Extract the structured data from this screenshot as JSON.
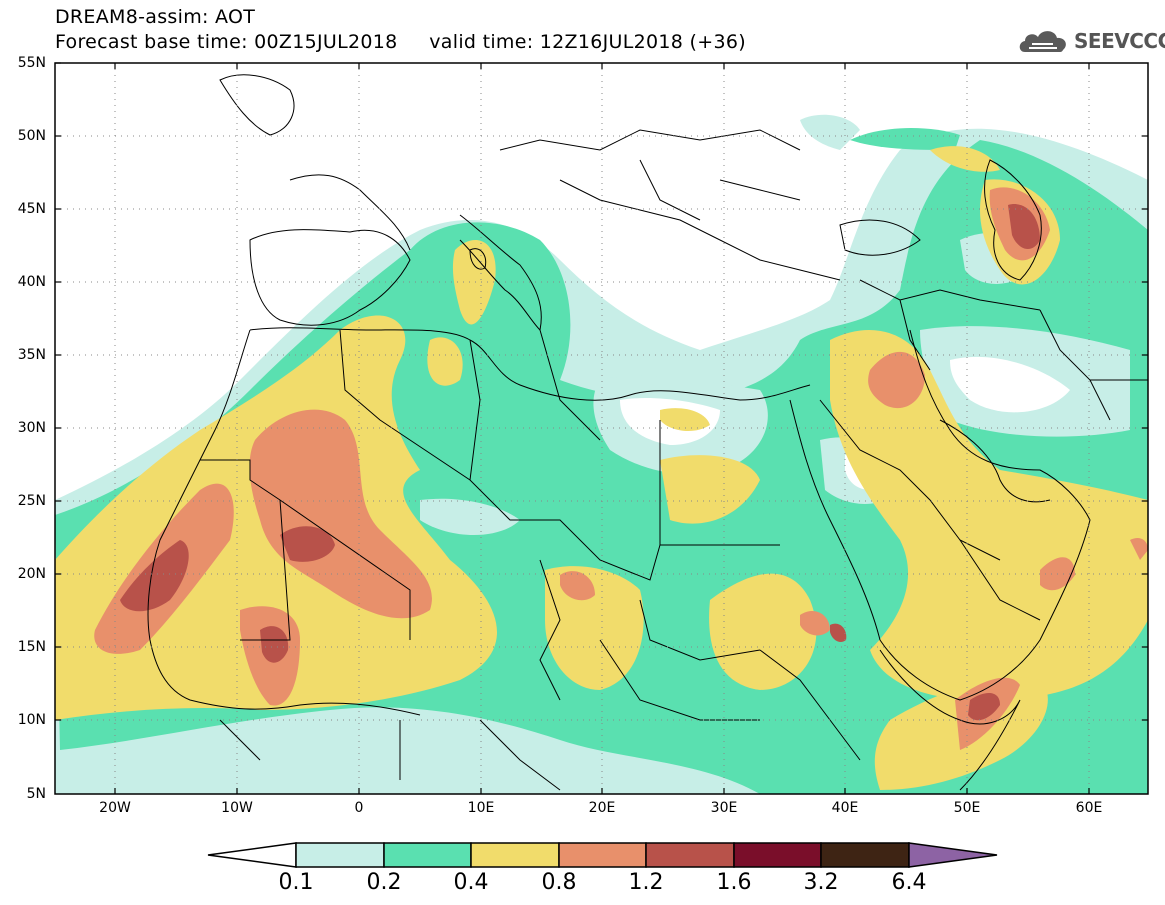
{
  "header": {
    "line1": "DREAM8-assim: AOT",
    "line2": "Forecast base time: 00Z15JUL2018     valid time: 12Z16JUL2018 (+36)"
  },
  "logo": {
    "text": "SEEVCCC",
    "icon": "cloud-icon"
  },
  "map": {
    "lat_labels": [
      "55N",
      "50N",
      "45N",
      "40N",
      "35N",
      "30N",
      "25N",
      "20N",
      "15N",
      "10N",
      "5N"
    ],
    "lon_labels": [
      "20W",
      "10W",
      "0",
      "10E",
      "20E",
      "30E",
      "40E",
      "50E",
      "60E"
    ],
    "colors": {
      "c01": "#c7eee7",
      "c02": "#5ae0b0",
      "c04": "#f1dc6b",
      "c08": "#e8906b",
      "c12": "#b8524a",
      "c16": "#7a0e2a",
      "c32": "#3e2414",
      "c64": "#8d63a4"
    }
  },
  "colorbar": {
    "labels": [
      "0.1",
      "0.2",
      "0.4",
      "0.8",
      "1.2",
      "1.6",
      "3.2",
      "6.4"
    ]
  }
}
